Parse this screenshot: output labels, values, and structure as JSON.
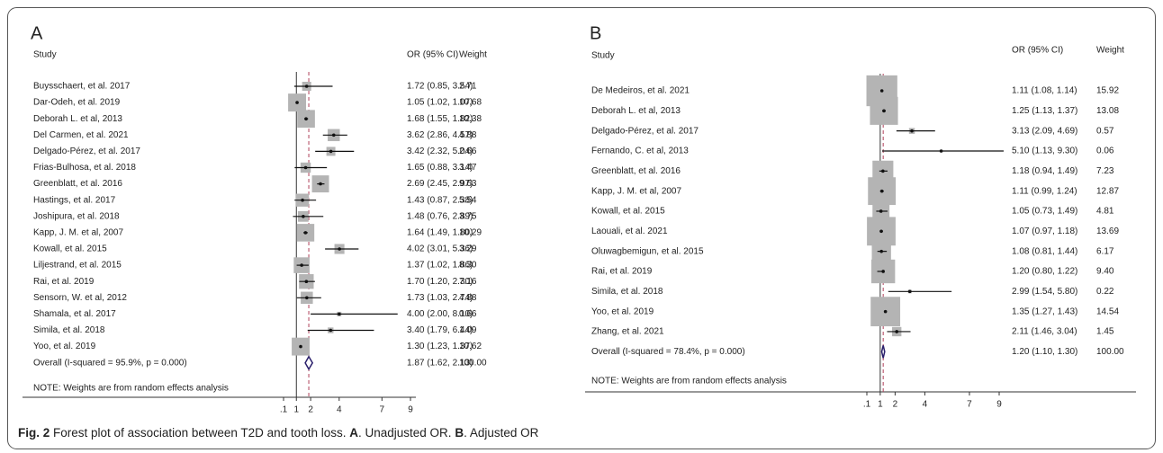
{
  "chart_data": [
    {
      "type": "forest",
      "panel": "A",
      "study_header": "Study",
      "or_header": "OR (95% CI)",
      "weight_header": "Weight",
      "studies": [
        "Buysschaert, et al. 2017",
        "Dar-Odeh, et al. 2019",
        "Deborah L. et al, 2013",
        "Del Carmen, et al. 2021",
        "Delgado-Pérez, et al. 2017",
        "Frias-Bulhosa, et al. 2018",
        "Greenblatt, et al. 2016",
        "Hastings, et al. 2017",
        "Joshipura, et al. 2018",
        "Kapp, J. M. et al, 2007",
        "Kowall, et al. 2015",
        "Liljestrand, et al. 2015",
        "Rai, et al. 2019",
        "Sensorn, W. et al, 2012",
        "Shamala, et al. 2017",
        "Simila, et al. 2018",
        "Yoo, et al. 2019"
      ],
      "values": [
        1.72,
        1.05,
        1.68,
        3.62,
        3.42,
        1.65,
        2.69,
        1.43,
        1.48,
        1.64,
        4.02,
        1.37,
        1.7,
        1.73,
        4.0,
        3.4,
        1.3
      ],
      "ci_low": [
        0.85,
        1.02,
        1.55,
        2.86,
        2.32,
        0.88,
        2.45,
        0.87,
        0.76,
        1.49,
        3.01,
        1.02,
        1.2,
        1.03,
        2.0,
        1.79,
        1.23
      ],
      "ci_high": [
        3.54,
        1.07,
        1.82,
        4.57,
        5.04,
        3.14,
        2.97,
        2.38,
        2.89,
        1.8,
        5.36,
        1.86,
        2.3,
        2.74,
        8.1,
        6.44,
        1.37
      ],
      "value_labels": [
        "1.72 (0.85, 3.54)",
        "1.05 (1.02, 1.07)",
        "1.68 (1.55, 1.82)",
        "3.62 (2.86, 4.57)",
        "3.42 (2.32, 5.04)",
        "1.65 (0.88, 3.14)",
        "2.69 (2.45, 2.97)",
        "1.43 (0.87, 2.38)",
        "1.48 (0.76, 2.89)",
        "1.64 (1.49, 1.80)",
        "4.02 (3.01, 5.36)",
        "1.37 (1.02, 1.86)",
        "1.70 (1.20, 2.30)",
        "1.73 (1.03, 2.74)",
        "4.00 (2.00, 8.10)",
        "3.40 (1.79, 6.44)",
        "1.30 (1.23, 1.37)"
      ],
      "weights": [
        2.71,
        10.68,
        10.38,
        4.88,
        2.66,
        3.47,
        9.63,
        5.54,
        3.75,
        10.29,
        3.29,
        8.3,
        7.16,
        4.88,
        0.66,
        1.09,
        10.62
      ],
      "weight_labels": [
        "2.71",
        "10.68",
        "10.38",
        "4.88",
        "2.66",
        "3.47",
        "9.63",
        "5.54",
        "3.75",
        "10.29",
        "3.29",
        "8.30",
        "7.16",
        "4.88",
        "0.66",
        "1.09",
        "10.62"
      ],
      "overall": {
        "label": "Overall  (I-squared = 95.9%, p = 0.000)",
        "value": 1.87,
        "ci_low": 1.62,
        "ci_high": 2.13,
        "value_label": "1.87 (1.62, 2.13)",
        "weight": 100,
        "weight_label": "100.00"
      },
      "note": "NOTE: Weights are from random effects analysis",
      "xlim": [
        0.1,
        9
      ],
      "xticks": [
        {
          "value": 0.1,
          "label": ".1"
        },
        1,
        2,
        4,
        7,
        9
      ]
    },
    {
      "type": "forest",
      "panel": "B",
      "study_header": "Study",
      "or_header": "OR (95% CI)",
      "weight_header": "Weight",
      "studies": [
        "De Medeiros, et al. 2021",
        "Deborah L. et al, 2013",
        "Delgado-Pérez, et al. 2017",
        "Fernando, C. et al, 2013",
        "Greenblatt, et al. 2016",
        "Kapp, J. M. et al, 2007",
        "Kowall, et al. 2015",
        "Laouali, et al. 2021",
        "Oluwagbemigun, et al. 2015",
        "Rai, et al. 2019",
        "Simila, et al. 2018",
        "Yoo, et al. 2019",
        "Zhang, et al. 2021"
      ],
      "values": [
        1.11,
        1.25,
        3.13,
        5.1,
        1.18,
        1.11,
        1.05,
        1.07,
        1.08,
        1.2,
        2.99,
        1.35,
        2.11
      ],
      "ci_low": [
        1.08,
        1.13,
        2.09,
        1.13,
        0.94,
        0.99,
        0.73,
        0.97,
        0.81,
        0.8,
        1.54,
        1.27,
        1.46
      ],
      "ci_high": [
        1.14,
        1.37,
        4.69,
        9.3,
        1.49,
        1.24,
        1.49,
        1.18,
        1.44,
        1.22,
        5.8,
        1.43,
        3.04
      ],
      "value_labels": [
        "1.11 (1.08, 1.14)",
        "1.25 (1.13, 1.37)",
        "3.13 (2.09, 4.69)",
        "5.10 (1.13, 9.30)",
        "1.18 (0.94, 1.49)",
        "1.11 (0.99, 1.24)",
        "1.05 (0.73, 1.49)",
        "1.07 (0.97, 1.18)",
        "1.08 (0.81, 1.44)",
        "1.20 (0.80, 1.22)",
        "2.99 (1.54, 5.80)",
        "1.35 (1.27, 1.43)",
        "2.11 (1.46, 3.04)"
      ],
      "weights": [
        15.92,
        13.08,
        0.57,
        0.06,
        7.23,
        12.87,
        4.81,
        13.69,
        6.17,
        9.4,
        0.22,
        14.54,
        1.45
      ],
      "weight_labels": [
        "15.92",
        "13.08",
        "0.57",
        "0.06",
        "7.23",
        "12.87",
        "4.81",
        "13.69",
        "6.17",
        "9.40",
        "0.22",
        "14.54",
        "1.45"
      ],
      "overall": {
        "label": "Overall  (I-squared = 78.4%, p = 0.000)",
        "value": 1.2,
        "ci_low": 1.1,
        "ci_high": 1.3,
        "value_label": "1.20 (1.10, 1.30)",
        "weight": 100,
        "weight_label": "100.00"
      },
      "note": "NOTE: Weights are from random effects analysis",
      "xlim": [
        0.1,
        9
      ],
      "xticks": [
        {
          "value": 0.1,
          "label": ".1"
        },
        1,
        2,
        4,
        7,
        9
      ]
    }
  ],
  "caption": {
    "figure": "Fig. 2",
    "text": "Forest plot of association between T2D and tooth loss.",
    "a": "A",
    "a_text": ". Unadjusted OR.",
    "b": "B",
    "b_text": ". Adjusted OR"
  }
}
